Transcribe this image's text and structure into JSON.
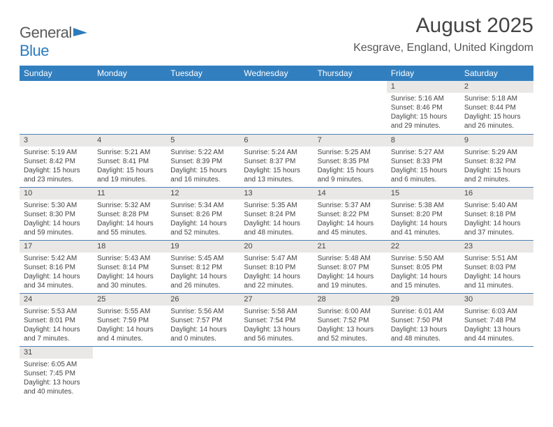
{
  "logo": {
    "text1": "General",
    "text2": "Blue"
  },
  "title": "August 2025",
  "location": "Kesgrave, England, United Kingdom",
  "headers": [
    "Sunday",
    "Monday",
    "Tuesday",
    "Wednesday",
    "Thursday",
    "Friday",
    "Saturday"
  ],
  "colors": {
    "header_bg": "#327fbf",
    "header_text": "#ffffff",
    "daynum_bg": "#e9e8e7",
    "border": "#4b7fb3",
    "text": "#3a3a3a",
    "logo_blue": "#2b7bbd"
  },
  "typography": {
    "title_fontsize": 30,
    "location_fontsize": 16,
    "header_fontsize": 12,
    "daynum_fontsize": 11,
    "cell_fontsize": 10
  },
  "weeks": [
    [
      {
        "n": "",
        "lines": []
      },
      {
        "n": "",
        "lines": []
      },
      {
        "n": "",
        "lines": []
      },
      {
        "n": "",
        "lines": []
      },
      {
        "n": "",
        "lines": []
      },
      {
        "n": "1",
        "lines": [
          "Sunrise: 5:16 AM",
          "Sunset: 8:46 PM",
          "Daylight: 15 hours",
          "and 29 minutes."
        ]
      },
      {
        "n": "2",
        "lines": [
          "Sunrise: 5:18 AM",
          "Sunset: 8:44 PM",
          "Daylight: 15 hours",
          "and 26 minutes."
        ]
      }
    ],
    [
      {
        "n": "3",
        "lines": [
          "Sunrise: 5:19 AM",
          "Sunset: 8:42 PM",
          "Daylight: 15 hours",
          "and 23 minutes."
        ]
      },
      {
        "n": "4",
        "lines": [
          "Sunrise: 5:21 AM",
          "Sunset: 8:41 PM",
          "Daylight: 15 hours",
          "and 19 minutes."
        ]
      },
      {
        "n": "5",
        "lines": [
          "Sunrise: 5:22 AM",
          "Sunset: 8:39 PM",
          "Daylight: 15 hours",
          "and 16 minutes."
        ]
      },
      {
        "n": "6",
        "lines": [
          "Sunrise: 5:24 AM",
          "Sunset: 8:37 PM",
          "Daylight: 15 hours",
          "and 13 minutes."
        ]
      },
      {
        "n": "7",
        "lines": [
          "Sunrise: 5:25 AM",
          "Sunset: 8:35 PM",
          "Daylight: 15 hours",
          "and 9 minutes."
        ]
      },
      {
        "n": "8",
        "lines": [
          "Sunrise: 5:27 AM",
          "Sunset: 8:33 PM",
          "Daylight: 15 hours",
          "and 6 minutes."
        ]
      },
      {
        "n": "9",
        "lines": [
          "Sunrise: 5:29 AM",
          "Sunset: 8:32 PM",
          "Daylight: 15 hours",
          "and 2 minutes."
        ]
      }
    ],
    [
      {
        "n": "10",
        "lines": [
          "Sunrise: 5:30 AM",
          "Sunset: 8:30 PM",
          "Daylight: 14 hours",
          "and 59 minutes."
        ]
      },
      {
        "n": "11",
        "lines": [
          "Sunrise: 5:32 AM",
          "Sunset: 8:28 PM",
          "Daylight: 14 hours",
          "and 55 minutes."
        ]
      },
      {
        "n": "12",
        "lines": [
          "Sunrise: 5:34 AM",
          "Sunset: 8:26 PM",
          "Daylight: 14 hours",
          "and 52 minutes."
        ]
      },
      {
        "n": "13",
        "lines": [
          "Sunrise: 5:35 AM",
          "Sunset: 8:24 PM",
          "Daylight: 14 hours",
          "and 48 minutes."
        ]
      },
      {
        "n": "14",
        "lines": [
          "Sunrise: 5:37 AM",
          "Sunset: 8:22 PM",
          "Daylight: 14 hours",
          "and 45 minutes."
        ]
      },
      {
        "n": "15",
        "lines": [
          "Sunrise: 5:38 AM",
          "Sunset: 8:20 PM",
          "Daylight: 14 hours",
          "and 41 minutes."
        ]
      },
      {
        "n": "16",
        "lines": [
          "Sunrise: 5:40 AM",
          "Sunset: 8:18 PM",
          "Daylight: 14 hours",
          "and 37 minutes."
        ]
      }
    ],
    [
      {
        "n": "17",
        "lines": [
          "Sunrise: 5:42 AM",
          "Sunset: 8:16 PM",
          "Daylight: 14 hours",
          "and 34 minutes."
        ]
      },
      {
        "n": "18",
        "lines": [
          "Sunrise: 5:43 AM",
          "Sunset: 8:14 PM",
          "Daylight: 14 hours",
          "and 30 minutes."
        ]
      },
      {
        "n": "19",
        "lines": [
          "Sunrise: 5:45 AM",
          "Sunset: 8:12 PM",
          "Daylight: 14 hours",
          "and 26 minutes."
        ]
      },
      {
        "n": "20",
        "lines": [
          "Sunrise: 5:47 AM",
          "Sunset: 8:10 PM",
          "Daylight: 14 hours",
          "and 22 minutes."
        ]
      },
      {
        "n": "21",
        "lines": [
          "Sunrise: 5:48 AM",
          "Sunset: 8:07 PM",
          "Daylight: 14 hours",
          "and 19 minutes."
        ]
      },
      {
        "n": "22",
        "lines": [
          "Sunrise: 5:50 AM",
          "Sunset: 8:05 PM",
          "Daylight: 14 hours",
          "and 15 minutes."
        ]
      },
      {
        "n": "23",
        "lines": [
          "Sunrise: 5:51 AM",
          "Sunset: 8:03 PM",
          "Daylight: 14 hours",
          "and 11 minutes."
        ]
      }
    ],
    [
      {
        "n": "24",
        "lines": [
          "Sunrise: 5:53 AM",
          "Sunset: 8:01 PM",
          "Daylight: 14 hours",
          "and 7 minutes."
        ]
      },
      {
        "n": "25",
        "lines": [
          "Sunrise: 5:55 AM",
          "Sunset: 7:59 PM",
          "Daylight: 14 hours",
          "and 4 minutes."
        ]
      },
      {
        "n": "26",
        "lines": [
          "Sunrise: 5:56 AM",
          "Sunset: 7:57 PM",
          "Daylight: 14 hours",
          "and 0 minutes."
        ]
      },
      {
        "n": "27",
        "lines": [
          "Sunrise: 5:58 AM",
          "Sunset: 7:54 PM",
          "Daylight: 13 hours",
          "and 56 minutes."
        ]
      },
      {
        "n": "28",
        "lines": [
          "Sunrise: 6:00 AM",
          "Sunset: 7:52 PM",
          "Daylight: 13 hours",
          "and 52 minutes."
        ]
      },
      {
        "n": "29",
        "lines": [
          "Sunrise: 6:01 AM",
          "Sunset: 7:50 PM",
          "Daylight: 13 hours",
          "and 48 minutes."
        ]
      },
      {
        "n": "30",
        "lines": [
          "Sunrise: 6:03 AM",
          "Sunset: 7:48 PM",
          "Daylight: 13 hours",
          "and 44 minutes."
        ]
      }
    ],
    [
      {
        "n": "31",
        "lines": [
          "Sunrise: 6:05 AM",
          "Sunset: 7:45 PM",
          "Daylight: 13 hours",
          "and 40 minutes."
        ]
      },
      {
        "n": "",
        "lines": []
      },
      {
        "n": "",
        "lines": []
      },
      {
        "n": "",
        "lines": []
      },
      {
        "n": "",
        "lines": []
      },
      {
        "n": "",
        "lines": []
      },
      {
        "n": "",
        "lines": []
      }
    ]
  ]
}
